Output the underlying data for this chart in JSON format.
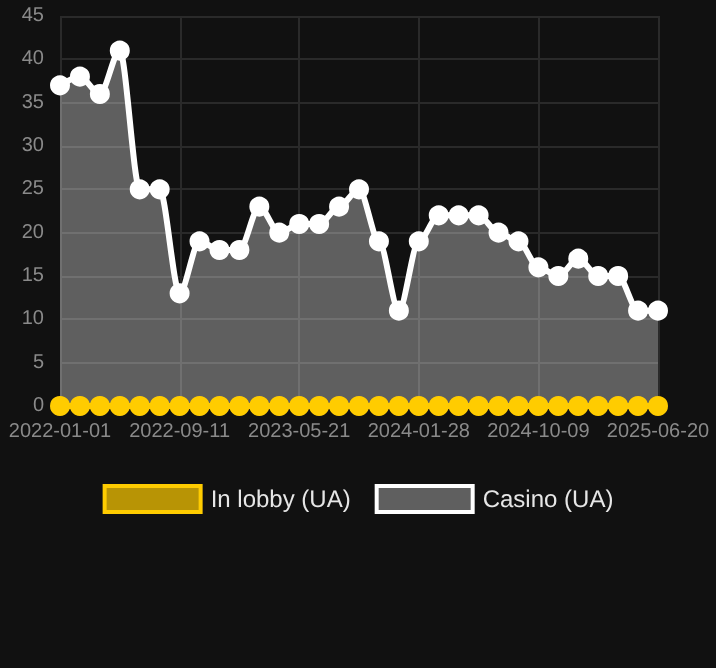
{
  "chart_data": {
    "type": "area",
    "categories": [
      "2022-01-01",
      null,
      null,
      null,
      null,
      null,
      "2022-09-11",
      null,
      null,
      null,
      null,
      null,
      "2023-05-21",
      null,
      null,
      null,
      null,
      null,
      "2024-01-28",
      null,
      null,
      null,
      null,
      null,
      "2024-10-09",
      null,
      null,
      null,
      null,
      null,
      "2025-06-20"
    ],
    "series": [
      {
        "name": "In lobby (UA)",
        "type": "line",
        "color": "#ffcc00",
        "values": [
          0,
          0,
          0,
          0,
          0,
          0,
          0,
          0,
          0,
          0,
          0,
          0,
          0,
          0,
          0,
          0,
          0,
          0,
          0,
          0,
          0,
          0,
          0,
          0,
          0,
          0,
          0,
          0,
          0,
          0,
          0
        ]
      },
      {
        "name": "Casino (UA)",
        "color": "#ffffff",
        "values": [
          37,
          38,
          36,
          41,
          25,
          25,
          13,
          19,
          18,
          18,
          23,
          20,
          21,
          21,
          23,
          25,
          19,
          11,
          19,
          22,
          22,
          22,
          20,
          19,
          16,
          15,
          17,
          15,
          15,
          11,
          11
        ]
      }
    ],
    "ylim": [
      0,
      45
    ],
    "yticks": [
      0,
      5,
      10,
      15,
      20,
      25,
      30,
      35,
      40,
      45
    ],
    "grid": true,
    "legend": "bottom",
    "marker": "circle",
    "line_style": "solid"
  }
}
